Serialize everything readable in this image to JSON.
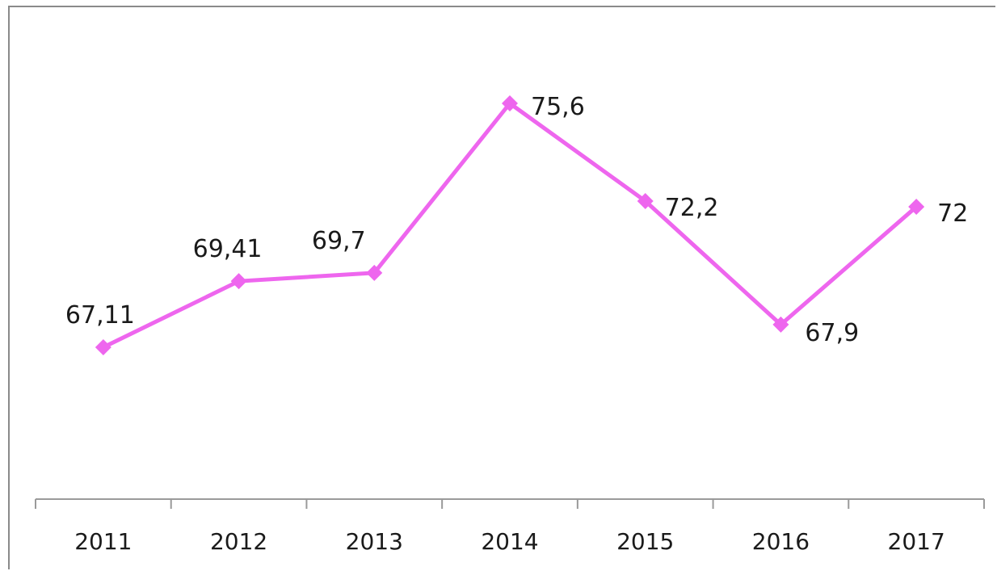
{
  "chart_data": {
    "type": "line",
    "categories": [
      "2011",
      "2012",
      "2013",
      "2014",
      "2015",
      "2016",
      "2017"
    ],
    "series": [
      {
        "values": [
          67.11,
          69.41,
          69.7,
          75.6,
          72.2,
          67.9,
          72
        ],
        "labels": [
          "67,11",
          "69,41",
          "69,7",
          "75,6",
          "72,2",
          "67,9",
          "72"
        ],
        "color": "#ee66ee",
        "marker": "diamond"
      }
    ],
    "ylim": [
      62,
      77
    ],
    "grid": false,
    "legend": "none"
  }
}
